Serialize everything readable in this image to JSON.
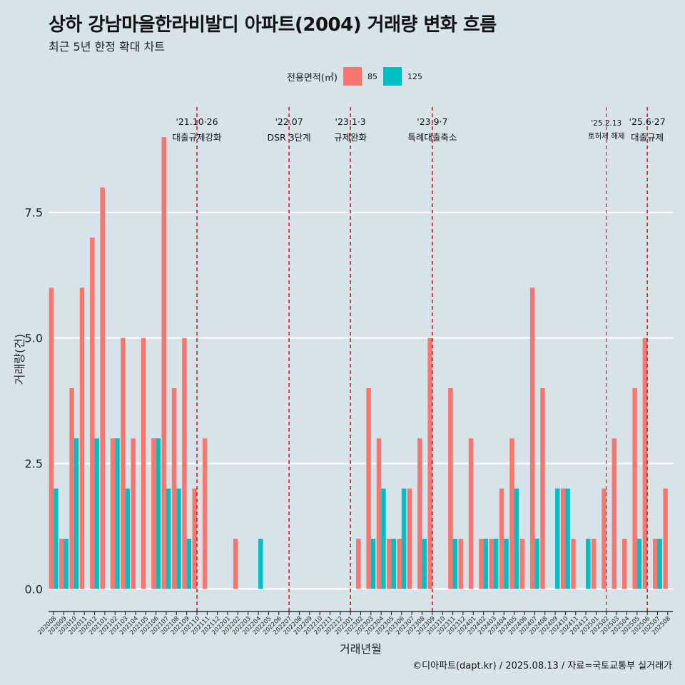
{
  "title": "상하 강남마을한라비발디 아파트(2004) 거래량 변화 흐름",
  "subtitle": "최근 5년 한정 확대 차트",
  "caption": "©디아파트(dapt.kr) / 2025.08.13 / 자료=국토교통부 실거래가",
  "legend": {
    "title": "전용면적(㎡)",
    "items": [
      {
        "label": "85",
        "color": "#f8766d"
      },
      {
        "label": "125",
        "color": "#00bfc4"
      }
    ]
  },
  "chart_data": {
    "type": "bar",
    "xlabel": "거래년월",
    "ylabel": "거래량(건)",
    "ylim": [
      -0.45,
      9.6
    ],
    "yticks": [
      0.0,
      2.5,
      5.0,
      7.5
    ],
    "ytick_labels": [
      "0.0",
      "2.5",
      "5.0",
      "7.5"
    ],
    "grid": true,
    "legend_position": "top",
    "categories": [
      "202008",
      "202009",
      "202010",
      "202011",
      "202012",
      "202101",
      "202102",
      "202103",
      "202104",
      "202105",
      "202106",
      "202107",
      "202108",
      "202109",
      "202110",
      "202111",
      "202112",
      "202201",
      "202202",
      "202203",
      "202204",
      "202205",
      "202206",
      "202207",
      "202208",
      "202209",
      "202210",
      "202211",
      "202212",
      "202301",
      "202302",
      "202303",
      "202304",
      "202305",
      "202306",
      "202307",
      "202308",
      "202309",
      "202310",
      "202311",
      "202312",
      "202401",
      "202402",
      "202403",
      "202404",
      "202405",
      "202406",
      "202407",
      "202408",
      "202409",
      "202410",
      "202411",
      "202412",
      "202501",
      "202502",
      "202503",
      "202504",
      "202505",
      "202506",
      "202507",
      "202508"
    ],
    "series": [
      {
        "name": "85",
        "color": "#f8766d",
        "values": [
          6,
          1,
          4,
          6,
          7,
          8,
          3,
          5,
          3,
          5,
          3,
          9,
          4,
          5,
          2,
          3,
          0,
          0,
          1,
          0,
          0,
          0,
          0,
          0,
          0,
          0,
          0,
          0,
          0,
          0,
          1,
          4,
          3,
          1,
          1,
          2,
          3,
          5,
          0,
          4,
          1,
          3,
          1,
          1,
          2,
          3,
          1,
          6,
          4,
          0,
          2,
          1,
          0,
          1,
          2,
          3,
          1,
          4,
          5,
          1,
          2
        ]
      },
      {
        "name": "125",
        "color": "#00bfc4",
        "values": [
          2,
          1,
          3,
          0,
          3,
          0,
          3,
          2,
          0,
          0,
          3,
          2,
          2,
          1,
          0,
          0,
          0,
          0,
          0,
          0,
          1,
          0,
          0,
          0,
          0,
          0,
          0,
          0,
          0,
          0,
          0,
          1,
          2,
          1,
          2,
          0,
          1,
          0,
          0,
          1,
          0,
          0,
          1,
          1,
          1,
          2,
          0,
          1,
          0,
          2,
          2,
          0,
          1,
          0,
          0,
          0,
          0,
          1,
          0,
          1,
          0
        ]
      }
    ],
    "annotations": [
      {
        "month": "202110",
        "date": "'21.10·26",
        "text": "대출규제강화",
        "small": false
      },
      {
        "month": "202207",
        "date": "'22.07",
        "text": "DSR 3단계",
        "small": false
      },
      {
        "month": "202301",
        "date": "'23.1·3",
        "text": "규제완화",
        "small": false
      },
      {
        "month": "202309",
        "date": "'23.9·7",
        "text": "특례대출축소",
        "small": false
      },
      {
        "month": "202502",
        "date": "'25.2.13",
        "text": "토허제 해제",
        "small": true
      },
      {
        "month": "202506",
        "date": "'25.6·27",
        "text": "대출규제",
        "small": false
      }
    ]
  }
}
